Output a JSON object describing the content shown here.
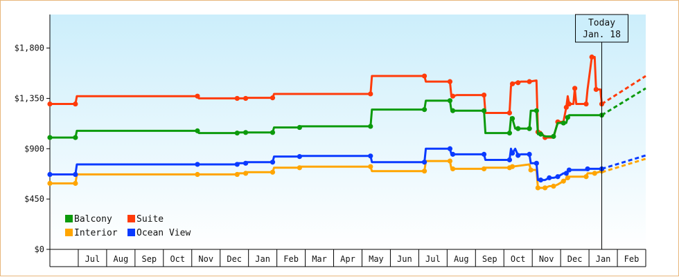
{
  "chart_data": {
    "type": "line",
    "title": "",
    "xlabel": "",
    "ylabel": "",
    "ylim": [
      0,
      2100
    ],
    "y_ticks": [
      "$0",
      "$450",
      "$900",
      "$1,350",
      "$1,800"
    ],
    "y_tick_values": [
      0,
      450,
      900,
      1350,
      1800
    ],
    "x_month_labels": [
      "Jul",
      "Aug",
      "Sep",
      "Oct",
      "Nov",
      "Dec",
      "Jan",
      "Feb",
      "Mar",
      "Apr",
      "May",
      "Jun",
      "Jul",
      "Aug",
      "Sep",
      "Oct",
      "Nov",
      "Dec",
      "Jan",
      "Feb"
    ],
    "x_range_months": [
      0,
      21
    ],
    "today_label_line1": "Today",
    "today_label_line2": "Jan. 18",
    "today_x": 19.45,
    "grid": false,
    "legend_position": "bottom-left",
    "series": [
      {
        "name": "Suite",
        "color": "#ff3b0a",
        "projection": [
          1300,
          1550
        ],
        "points": [
          [
            0,
            1300
          ],
          [
            0.9,
            1300
          ],
          [
            0.95,
            1370
          ],
          [
            5.2,
            1370
          ],
          [
            5.25,
            1350
          ],
          [
            6.6,
            1350
          ],
          [
            6.65,
            1350
          ],
          [
            6.9,
            1350
          ],
          [
            6.95,
            1355
          ],
          [
            7.85,
            1355
          ],
          [
            7.9,
            1390
          ],
          [
            11.3,
            1390
          ],
          [
            11.35,
            1550
          ],
          [
            13.2,
            1550
          ],
          [
            13.25,
            1500
          ],
          [
            14.1,
            1500
          ],
          [
            14.15,
            1370
          ],
          [
            14.2,
            1370
          ],
          [
            14.35,
            1380
          ],
          [
            15.3,
            1380
          ],
          [
            15.35,
            1220
          ],
          [
            16.2,
            1220
          ],
          [
            16.25,
            1460
          ],
          [
            16.3,
            1480
          ],
          [
            16.4,
            1490
          ],
          [
            16.5,
            1490
          ],
          [
            16.6,
            1500
          ],
          [
            16.9,
            1500
          ],
          [
            17.15,
            1510
          ],
          [
            17.2,
            1050
          ],
          [
            17.3,
            1050
          ],
          [
            17.45,
            1000
          ],
          [
            17.75,
            1000
          ],
          [
            17.9,
            1140
          ],
          [
            18.1,
            1140
          ],
          [
            18.2,
            1270
          ],
          [
            18.25,
            1370
          ],
          [
            18.3,
            1300
          ],
          [
            18.45,
            1300
          ],
          [
            18.5,
            1440
          ],
          [
            18.55,
            1300
          ],
          [
            18.9,
            1300
          ],
          [
            18.95,
            1430
          ],
          [
            19.1,
            1720
          ],
          [
            19.2,
            1720
          ],
          [
            19.25,
            1430
          ],
          [
            19.4,
            1430
          ],
          [
            19.45,
            1300
          ]
        ]
      },
      {
        "name": "Balcony",
        "color": "#0c9a0c",
        "projection": [
          1200,
          1440
        ],
        "points": [
          [
            0,
            1000
          ],
          [
            0.9,
            1000
          ],
          [
            0.95,
            1060
          ],
          [
            5.2,
            1060
          ],
          [
            5.25,
            1040
          ],
          [
            6.6,
            1040
          ],
          [
            6.65,
            1045
          ],
          [
            6.9,
            1045
          ],
          [
            6.95,
            1045
          ],
          [
            7.85,
            1045
          ],
          [
            7.9,
            1090
          ],
          [
            8.8,
            1090
          ],
          [
            8.85,
            1100
          ],
          [
            11.3,
            1100
          ],
          [
            11.35,
            1250
          ],
          [
            13.2,
            1250
          ],
          [
            13.25,
            1330
          ],
          [
            14.1,
            1330
          ],
          [
            14.15,
            1240
          ],
          [
            14.2,
            1240
          ],
          [
            14.35,
            1240
          ],
          [
            15.3,
            1240
          ],
          [
            15.35,
            1040
          ],
          [
            16.2,
            1040
          ],
          [
            16.25,
            1180
          ],
          [
            16.3,
            1170
          ],
          [
            16.4,
            1080
          ],
          [
            16.5,
            1080
          ],
          [
            16.6,
            1080
          ],
          [
            16.9,
            1080
          ],
          [
            16.95,
            1240
          ],
          [
            17.15,
            1240
          ],
          [
            17.2,
            1030
          ],
          [
            17.3,
            1030
          ],
          [
            17.45,
            1010
          ],
          [
            17.75,
            1010
          ],
          [
            17.9,
            1130
          ],
          [
            18.1,
            1130
          ],
          [
            18.2,
            1130
          ],
          [
            18.25,
            1180
          ],
          [
            18.3,
            1200
          ],
          [
            19.45,
            1200
          ]
        ]
      },
      {
        "name": "Interior",
        "color": "#ffa500",
        "projection": [
          690,
          810
        ],
        "points": [
          [
            0,
            590
          ],
          [
            0.9,
            590
          ],
          [
            0.95,
            670
          ],
          [
            5.2,
            670
          ],
          [
            5.25,
            670
          ],
          [
            6.6,
            670
          ],
          [
            6.65,
            680
          ],
          [
            6.9,
            680
          ],
          [
            6.95,
            690
          ],
          [
            7.85,
            690
          ],
          [
            7.9,
            730
          ],
          [
            8.8,
            730
          ],
          [
            8.85,
            740
          ],
          [
            11.3,
            740
          ],
          [
            11.35,
            700
          ],
          [
            13.2,
            700
          ],
          [
            13.25,
            790
          ],
          [
            14.1,
            790
          ],
          [
            14.15,
            720
          ],
          [
            14.2,
            720
          ],
          [
            14.35,
            720
          ],
          [
            15.3,
            720
          ],
          [
            15.35,
            730
          ],
          [
            16.2,
            730
          ],
          [
            16.25,
            740
          ],
          [
            16.3,
            740
          ],
          [
            16.9,
            760
          ],
          [
            16.95,
            710
          ],
          [
            17.15,
            710
          ],
          [
            17.2,
            550
          ],
          [
            17.3,
            550
          ],
          [
            17.45,
            550
          ],
          [
            17.6,
            565
          ],
          [
            17.75,
            565
          ],
          [
            17.9,
            580
          ],
          [
            18.1,
            610
          ],
          [
            18.2,
            630
          ],
          [
            18.25,
            640
          ],
          [
            18.3,
            650
          ],
          [
            18.9,
            650
          ],
          [
            18.95,
            680
          ],
          [
            19.2,
            680
          ],
          [
            19.45,
            700
          ]
        ]
      },
      {
        "name": "Ocean View",
        "color": "#0a3aff",
        "projection": [
          720,
          840
        ],
        "points": [
          [
            0,
            670
          ],
          [
            0.9,
            670
          ],
          [
            0.95,
            760
          ],
          [
            5.2,
            760
          ],
          [
            5.25,
            760
          ],
          [
            6.6,
            760
          ],
          [
            6.65,
            770
          ],
          [
            6.9,
            770
          ],
          [
            6.95,
            780
          ],
          [
            7.85,
            780
          ],
          [
            7.9,
            830
          ],
          [
            8.8,
            830
          ],
          [
            8.85,
            835
          ],
          [
            11.3,
            835
          ],
          [
            11.35,
            780
          ],
          [
            13.2,
            780
          ],
          [
            13.25,
            900
          ],
          [
            14.1,
            900
          ],
          [
            14.15,
            850
          ],
          [
            14.2,
            850
          ],
          [
            14.35,
            850
          ],
          [
            15.3,
            850
          ],
          [
            15.35,
            800
          ],
          [
            16.2,
            800
          ],
          [
            16.25,
            900
          ],
          [
            16.3,
            860
          ],
          [
            16.4,
            900
          ],
          [
            16.5,
            840
          ],
          [
            16.6,
            850
          ],
          [
            16.9,
            850
          ],
          [
            16.95,
            770
          ],
          [
            17.15,
            770
          ],
          [
            17.2,
            620
          ],
          [
            17.3,
            620
          ],
          [
            17.45,
            620
          ],
          [
            17.6,
            640
          ],
          [
            17.75,
            640
          ],
          [
            17.9,
            650
          ],
          [
            18.1,
            680
          ],
          [
            18.2,
            680
          ],
          [
            18.25,
            700
          ],
          [
            18.3,
            710
          ],
          [
            18.9,
            710
          ],
          [
            18.95,
            720
          ],
          [
            19.2,
            720
          ],
          [
            19.45,
            720
          ]
        ]
      }
    ],
    "legend": [
      {
        "name": "Balcony",
        "color": "#0c9a0c"
      },
      {
        "name": "Suite",
        "color": "#ff3b0a"
      },
      {
        "name": "Interior",
        "color": "#ffa500"
      },
      {
        "name": "Ocean View",
        "color": "#0a3aff"
      }
    ]
  }
}
